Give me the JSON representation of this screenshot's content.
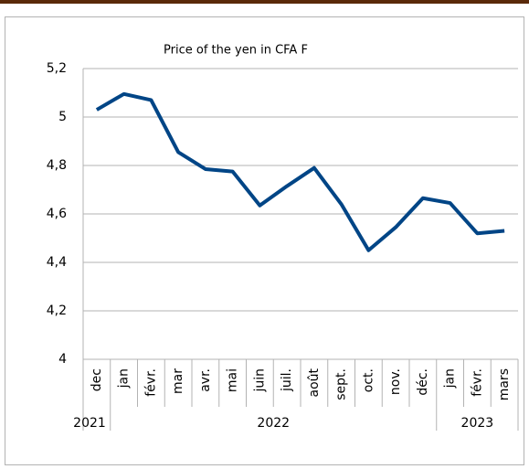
{
  "chart_data": {
    "type": "line",
    "title": "Price of the yen in CFA F",
    "categories": [
      "dec",
      "jan",
      "févr.",
      "mar",
      "avr.",
      "mai",
      "juin",
      "juil.",
      "août",
      "sept.",
      "oct.",
      "nov.",
      "déc.",
      "jan",
      "févr.",
      "mars"
    ],
    "groups": [
      {
        "label": "2021",
        "first": 0,
        "last": 0
      },
      {
        "label": "2022",
        "first": 1,
        "last": 12
      },
      {
        "label": "2023",
        "first": 13,
        "last": 15
      }
    ],
    "series": [
      {
        "name": "Price",
        "color": "#004586",
        "values": [
          5.03,
          5.095,
          5.07,
          4.855,
          4.785,
          4.775,
          4.635,
          4.715,
          4.79,
          4.64,
          4.45,
          4.545,
          4.665,
          4.645,
          4.52,
          4.53
        ]
      }
    ],
    "ylim": [
      4,
      5.2
    ],
    "yticks": [
      4,
      {
        "value": 4.2,
        "label": "4,2"
      },
      {
        "value": 4.4,
        "label": "4,4"
      },
      {
        "value": 4.6,
        "label": "4,6"
      },
      {
        "value": 4.8,
        "label": "4,8"
      },
      5,
      {
        "value": 5.2,
        "label": "5,2"
      }
    ],
    "grid": true
  }
}
